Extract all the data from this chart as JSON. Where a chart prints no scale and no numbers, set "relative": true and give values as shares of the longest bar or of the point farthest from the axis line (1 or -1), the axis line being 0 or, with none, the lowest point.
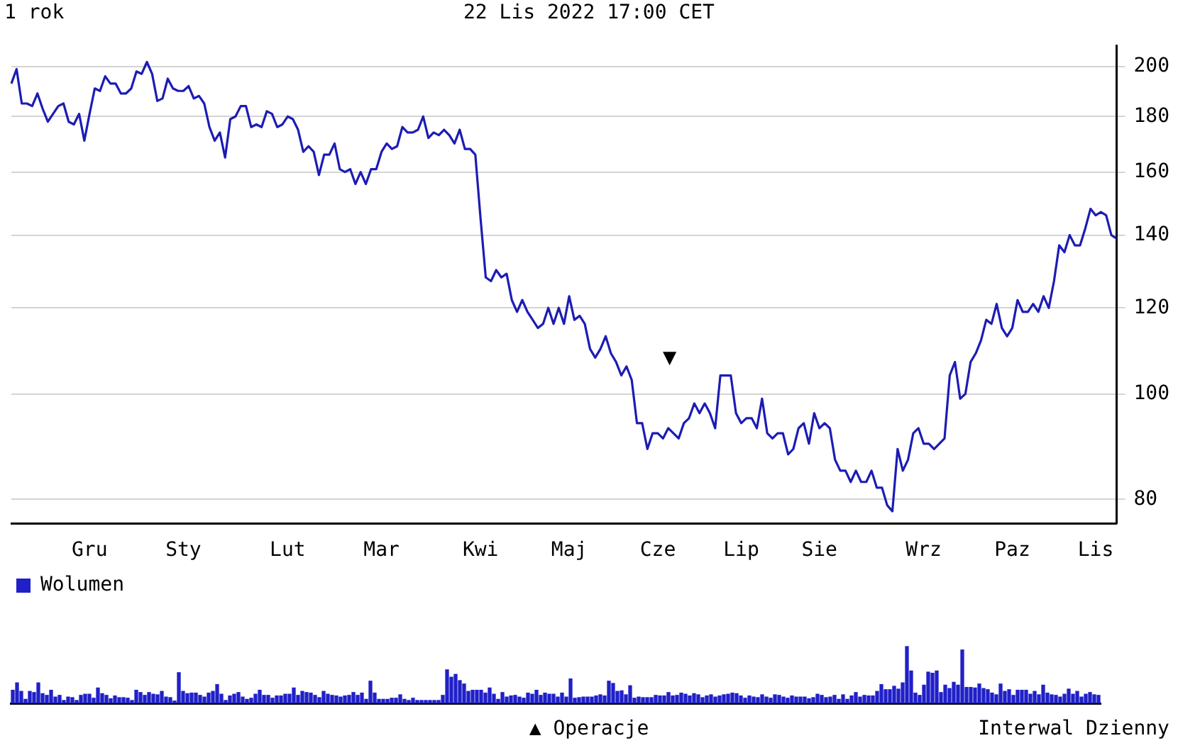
{
  "chart_data": [
    {
      "type": "line",
      "title": "1 rok",
      "subtitle": "22 Lis 2022 17:00 CET",
      "categories": [
        null,
        null,
        null,
        null,
        null,
        null,
        null,
        null,
        null,
        null,
        null,
        null,
        null,
        null,
        null,
        "Gru",
        null,
        null,
        null,
        null,
        null,
        null,
        null,
        null,
        null,
        null,
        null,
        null,
        null,
        null,
        null,
        null,
        null,
        "Sty",
        null,
        null,
        null,
        null,
        null,
        null,
        null,
        null,
        null,
        null,
        null,
        null,
        null,
        null,
        null,
        null,
        null,
        null,
        null,
        "Lut",
        null,
        null,
        null,
        null,
        null,
        null,
        null,
        null,
        null,
        null,
        null,
        null,
        null,
        null,
        null,
        null,
        null,
        "Mar",
        null,
        null,
        null,
        null,
        null,
        null,
        null,
        null,
        null,
        null,
        null,
        null,
        null,
        null,
        null,
        null,
        null,
        null,
        "Kwi",
        null,
        null,
        null,
        null,
        null,
        null,
        null,
        null,
        null,
        null,
        null,
        null,
        null,
        null,
        null,
        null,
        "Maj",
        null,
        null,
        null,
        null,
        null,
        null,
        null,
        null,
        null,
        null,
        null,
        null,
        null,
        null,
        null,
        null,
        "Cze",
        null,
        null,
        null,
        null,
        null,
        null,
        null,
        null,
        null,
        null,
        null,
        null,
        null,
        null,
        null,
        "Lip",
        null,
        null,
        null,
        null,
        null,
        null,
        null,
        null,
        null,
        null,
        null,
        null,
        null,
        null,
        "Sie",
        null,
        null,
        null,
        null,
        null,
        null,
        null,
        null,
        null,
        null,
        null,
        null,
        null,
        null,
        null,
        null,
        null,
        null,
        null,
        "Wrz",
        null,
        null,
        null,
        null,
        null,
        null,
        null,
        null,
        null,
        null,
        null,
        null,
        null,
        null,
        null,
        null,
        "Paz",
        null,
        null,
        null,
        null,
        null,
        null,
        null,
        null,
        null,
        null,
        null,
        null,
        null,
        null,
        null,
        "Lis",
        null,
        null,
        null,
        null
      ],
      "series": [
        {
          "color": "#1c1cb4",
          "values": [
            193,
            199,
            185,
            185,
            184,
            189,
            183,
            178,
            181,
            184,
            185,
            178,
            177,
            181,
            171,
            181,
            191,
            190,
            196,
            193,
            193,
            189,
            189,
            191,
            198,
            197,
            202,
            197,
            186,
            187,
            195,
            191,
            190,
            190,
            192,
            187,
            188,
            185,
            176,
            171,
            174,
            165,
            179,
            180,
            184,
            184,
            176,
            177,
            176,
            182,
            181,
            176,
            177,
            180,
            179,
            175,
            167,
            169,
            167,
            159,
            166,
            166,
            170,
            161,
            160,
            161,
            156,
            160,
            156,
            161,
            161,
            167,
            170,
            168,
            169,
            176,
            174,
            174,
            175,
            180,
            172,
            174,
            173,
            175,
            173,
            170,
            175,
            168,
            168,
            166,
            145,
            128,
            127,
            130,
            128,
            129,
            122,
            119,
            122,
            119,
            117,
            115,
            116,
            120,
            116,
            120,
            116,
            123,
            117,
            118,
            116,
            110,
            108,
            110,
            113,
            109,
            107,
            104,
            106,
            103,
            94,
            94,
            89,
            92,
            92,
            91,
            93,
            92,
            91,
            94,
            95,
            98,
            96,
            98,
            96,
            93,
            104,
            104,
            104,
            96,
            94,
            95,
            95,
            93,
            99,
            92,
            91,
            92,
            92,
            88,
            89,
            93,
            94,
            90,
            96,
            93,
            94,
            93,
            87,
            85,
            85,
            83,
            85,
            83,
            83,
            85,
            82,
            82,
            79,
            78,
            89,
            85,
            87,
            92,
            93,
            90,
            90,
            89,
            90,
            91,
            104,
            107,
            99,
            100,
            107,
            109,
            112,
            117,
            116,
            121,
            115,
            113,
            115,
            122,
            119,
            119,
            121,
            119,
            123,
            120,
            127,
            137,
            135,
            140,
            137,
            137,
            142,
            148,
            146,
            147,
            146,
            140,
            139
          ]
        }
      ],
      "ylim": [
        76,
        209
      ],
      "yticks": [
        80,
        100,
        120,
        140,
        160,
        180,
        200
      ],
      "log": "y",
      "grid": "y",
      "annotations": [
        "▼"
      ]
    },
    {
      "type": "bar",
      "relative": true,
      "tick_labels": false,
      "legend": "top left",
      "categories": [
        null,
        null,
        null,
        null,
        null,
        null,
        null,
        null,
        null,
        null,
        null,
        null,
        null,
        null,
        null,
        null,
        null,
        null,
        null,
        null,
        null,
        null,
        null,
        null,
        null,
        null,
        null,
        null,
        null,
        null,
        null,
        null,
        null,
        null,
        null,
        null,
        null,
        null,
        null,
        null,
        null,
        null,
        null,
        null,
        null,
        null,
        null,
        null,
        null,
        null,
        null,
        null,
        null,
        null,
        null,
        null,
        null,
        null,
        null,
        null,
        null,
        null,
        null,
        null,
        null,
        null,
        null,
        null,
        null,
        null,
        null,
        null,
        null,
        null,
        null,
        null,
        null,
        null,
        null,
        null,
        null,
        null,
        null,
        null,
        null,
        null,
        null,
        null,
        null,
        null,
        null,
        null,
        null,
        null,
        null,
        null,
        null,
        null,
        null,
        null,
        null,
        null,
        null,
        null,
        null,
        null,
        null,
        null,
        null,
        null,
        null,
        null,
        null,
        null,
        null,
        null,
        null,
        null,
        null,
        null,
        null,
        null,
        null,
        null,
        null,
        null,
        null,
        null,
        null,
        null,
        null,
        null,
        null,
        null,
        null,
        null,
        null,
        null,
        null,
        null,
        null,
        null,
        null,
        null,
        null,
        null,
        null,
        null,
        null,
        null,
        null,
        null,
        null,
        null,
        null,
        null,
        null,
        null,
        null,
        null,
        null,
        null,
        null,
        null,
        null,
        null,
        null,
        null,
        null,
        null,
        null,
        null,
        null,
        null,
        null,
        null,
        null,
        null,
        null,
        null,
        null,
        null,
        null,
        null,
        null,
        null,
        null,
        null,
        null,
        null,
        null,
        null,
        null,
        null,
        null,
        null,
        null,
        null,
        null,
        null,
        null,
        null,
        null,
        null,
        null,
        null,
        null,
        null,
        null,
        null,
        null,
        null,
        null,
        null,
        null,
        null,
        null,
        null,
        null,
        null,
        null,
        null,
        null,
        null,
        null,
        null,
        null,
        null,
        null,
        null,
        null,
        null,
        null,
        null,
        null,
        null,
        null,
        null,
        null,
        null,
        null,
        null,
        null,
        null,
        null,
        null,
        null,
        null,
        null,
        null,
        null,
        null,
        null,
        null,
        null,
        null
      ],
      "series": [
        {
          "name": "Wolumen",
          "color": "#2020c8",
          "values": [
            0.23,
            0.36,
            0.21,
            0.07,
            0.21,
            0.19,
            0.36,
            0.17,
            0.14,
            0.23,
            0.11,
            0.14,
            0.05,
            0.11,
            0.1,
            0.05,
            0.14,
            0.16,
            0.16,
            0.09,
            0.27,
            0.17,
            0.14,
            0.08,
            0.13,
            0.1,
            0.1,
            0.09,
            0.05,
            0.23,
            0.19,
            0.14,
            0.19,
            0.16,
            0.15,
            0.21,
            0.11,
            0.1,
            0.04,
            0.54,
            0.21,
            0.17,
            0.18,
            0.18,
            0.14,
            0.11,
            0.18,
            0.21,
            0.33,
            0.16,
            0.05,
            0.13,
            0.16,
            0.19,
            0.11,
            0.07,
            0.09,
            0.16,
            0.23,
            0.14,
            0.14,
            0.09,
            0.13,
            0.13,
            0.16,
            0.16,
            0.27,
            0.14,
            0.21,
            0.19,
            0.18,
            0.14,
            0.1,
            0.21,
            0.16,
            0.14,
            0.13,
            0.11,
            0.13,
            0.14,
            0.19,
            0.14,
            0.18,
            0.07,
            0.39,
            0.18,
            0.07,
            0.07,
            0.07,
            0.09,
            0.09,
            0.15,
            0.07,
            0.05,
            0.09,
            0.05,
            0.05,
            0.05,
            0.05,
            0.05,
            0.05,
            0.14,
            0.59,
            0.46,
            0.51,
            0.4,
            0.34,
            0.21,
            0.23,
            0.23,
            0.23,
            0.18,
            0.27,
            0.16,
            0.07,
            0.19,
            0.11,
            0.13,
            0.14,
            0.11,
            0.09,
            0.18,
            0.16,
            0.23,
            0.14,
            0.18,
            0.16,
            0.16,
            0.11,
            0.18,
            0.11,
            0.43,
            0.09,
            0.1,
            0.11,
            0.11,
            0.11,
            0.13,
            0.15,
            0.13,
            0.39,
            0.35,
            0.21,
            0.22,
            0.15,
            0.31,
            0.09,
            0.11,
            0.1,
            0.1,
            0.1,
            0.14,
            0.13,
            0.13,
            0.19,
            0.13,
            0.14,
            0.18,
            0.16,
            0.13,
            0.17,
            0.15,
            0.1,
            0.13,
            0.15,
            0.11,
            0.13,
            0.15,
            0.16,
            0.18,
            0.17,
            0.13,
            0.09,
            0.13,
            0.11,
            0.1,
            0.15,
            0.11,
            0.09,
            0.15,
            0.14,
            0.11,
            0.09,
            0.13,
            0.11,
            0.11,
            0.11,
            0.08,
            0.1,
            0.16,
            0.14,
            0.1,
            0.11,
            0.14,
            0.07,
            0.15,
            0.07,
            0.13,
            0.19,
            0.11,
            0.14,
            0.13,
            0.13,
            0.21,
            0.33,
            0.24,
            0.24,
            0.3,
            0.25,
            0.36,
            1,
            0.57,
            0.18,
            0.14,
            0.32,
            0.55,
            0.53,
            0.57,
            0.19,
            0.32,
            0.26,
            0.37,
            0.32,
            0.94,
            0.28,
            0.28,
            0.27,
            0.34,
            0.26,
            0.24,
            0.18,
            0.15,
            0.34,
            0.21,
            0.24,
            0.14,
            0.23,
            0.23,
            0.23,
            0.16,
            0.21,
            0.15,
            0.32,
            0.18,
            0.15,
            0.14,
            0.11,
            0.16,
            0.25,
            0.16,
            0.21,
            0.11,
            0.16,
            0.19,
            0.15,
            0.14
          ]
        }
      ],
      "annotations": [
        "▲ Operacje",
        "Interwal Dzienny"
      ]
    }
  ]
}
